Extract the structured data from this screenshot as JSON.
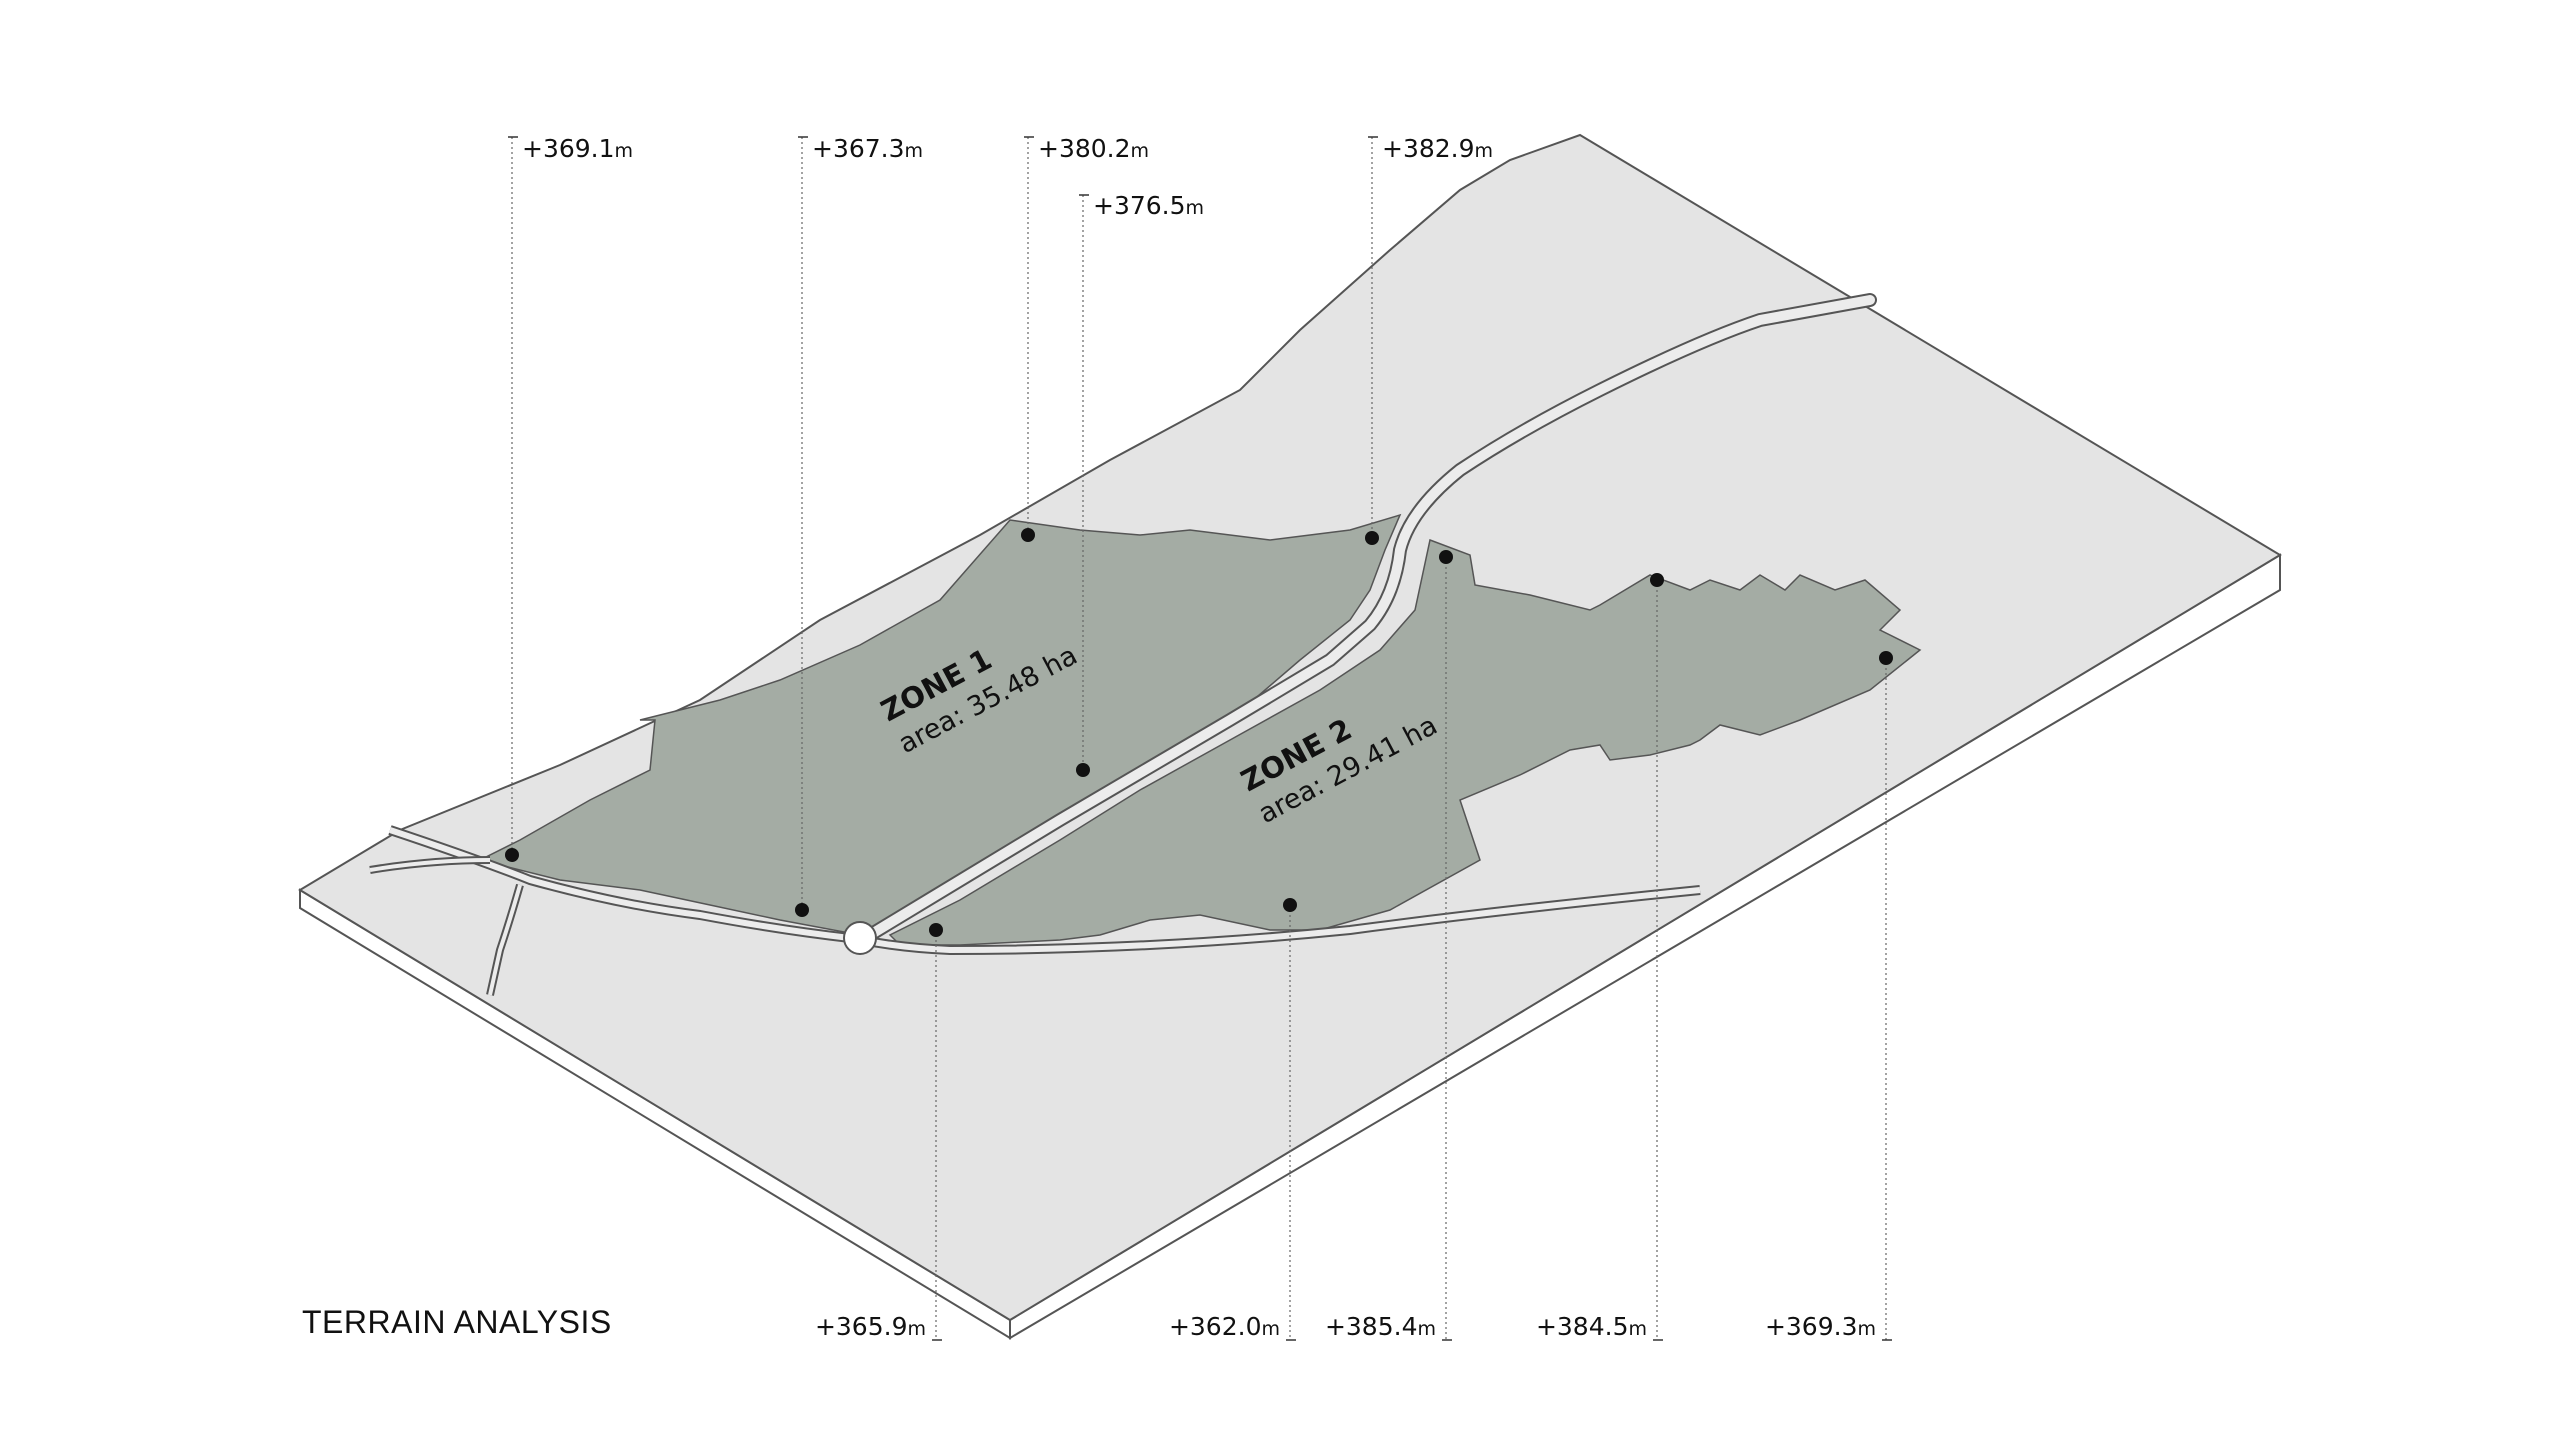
{
  "title": "TERRAIN ANALYSIS",
  "colors": {
    "terrain_top": "#e4e4e4",
    "terrain_side": "#ffffff",
    "zone_fill": "#a4aca4",
    "road_fill": "#ececec",
    "outline": "#555555"
  },
  "zones": [
    {
      "name": "ZONE 1",
      "area": "area: 35.48 ha"
    },
    {
      "name": "ZONE 2",
      "area": "area: 29.41 ha"
    }
  ],
  "elevations_top": [
    {
      "value": "+369.1",
      "unit": "m"
    },
    {
      "value": "+367.3",
      "unit": "m"
    },
    {
      "value": "+380.2",
      "unit": "m"
    },
    {
      "value": "+376.5",
      "unit": "m"
    },
    {
      "value": "+382.9",
      "unit": "m"
    }
  ],
  "elevations_bottom": [
    {
      "value": "+365.9",
      "unit": "m"
    },
    {
      "value": "+362.0",
      "unit": "m"
    },
    {
      "value": "+385.4",
      "unit": "m"
    },
    {
      "value": "+384.5",
      "unit": "m"
    },
    {
      "value": "+369.3",
      "unit": "m"
    }
  ]
}
